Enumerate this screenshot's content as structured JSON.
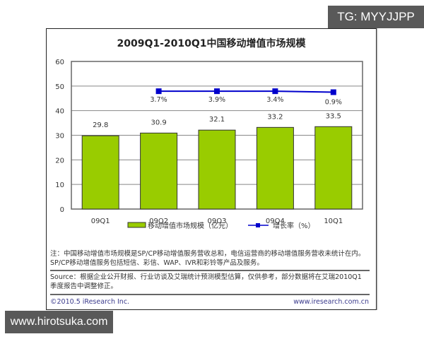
{
  "badges": {
    "top_right": "TG: MYYJJPP",
    "bottom_left": "www.hirotsuka.com"
  },
  "chart_data": {
    "type": "bar",
    "title": "2009Q1-2010Q1中国移动增值市场规模",
    "categories": [
      "09Q1",
      "09Q2",
      "09Q3",
      "09Q4",
      "10Q1"
    ],
    "series": [
      {
        "name": "移动增值市场规模（亿元）",
        "type": "bar",
        "values": [
          29.8,
          30.9,
          32.1,
          33.2,
          33.5
        ],
        "color": "#99cc00"
      },
      {
        "name": "增长率（%）",
        "type": "line",
        "values": [
          null,
          3.7,
          3.9,
          3.4,
          0.9
        ],
        "labels": [
          "",
          "3.7%",
          "3.9%",
          "3.4%",
          "0.9%"
        ],
        "color": "#0000cc"
      }
    ],
    "xlabel": "",
    "ylabel": "",
    "ylim": [
      0,
      60
    ],
    "yticks": [
      0,
      10,
      20,
      30,
      40,
      50,
      60
    ],
    "grid": true,
    "legend_position": "bottom"
  },
  "legend": {
    "bar_label": "移动增值市场规模（亿元）",
    "line_label": "增长率（%）"
  },
  "notes": {
    "note": "注：中国移动增值市场规模是SP/CP移动增值服务营收总和，电信运营商的移动增值服务营收未统计在内。SP/CP移动增值服务包括短信、彩信、WAP、IVR和彩铃等产品及服务。",
    "source": "Source：根据企业公开财报、行业访谈及艾瑞统计预测模型估算，仅供参考，部分数据将在艾瑞2010Q1季度报告中调整修正。",
    "copyright": "©2010.5 iResearch Inc.",
    "website": "www.iresearch.com.cn"
  }
}
